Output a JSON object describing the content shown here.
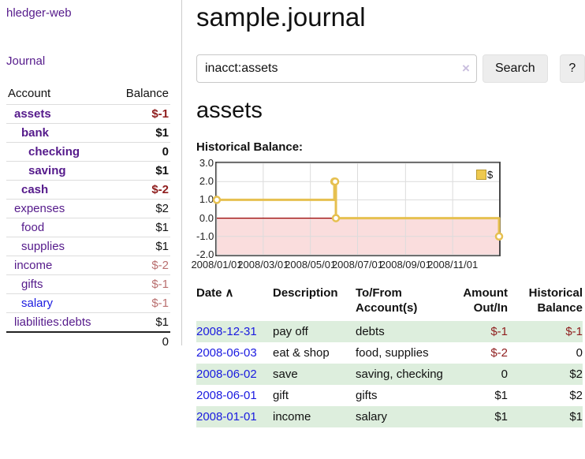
{
  "app": {
    "title": "hledger-web",
    "nav_journal": "Journal"
  },
  "sidebar": {
    "headers": {
      "account": "Account",
      "balance": "Balance"
    },
    "accounts": [
      {
        "name": "assets",
        "balance": "$-1",
        "indent": 0,
        "bold": true,
        "negative": true
      },
      {
        "name": "bank",
        "balance": "$1",
        "indent": 1,
        "bold": true,
        "negative": false
      },
      {
        "name": "checking",
        "balance": "0",
        "indent": 2,
        "bold": true,
        "negative": false
      },
      {
        "name": "saving",
        "balance": "$1",
        "indent": 2,
        "bold": true,
        "negative": false
      },
      {
        "name": "cash",
        "balance": "$-2",
        "indent": 1,
        "bold": true,
        "negative": true
      },
      {
        "name": "expenses",
        "balance": "$2",
        "indent": 0,
        "bold": false,
        "negative": false
      },
      {
        "name": "food",
        "balance": "$1",
        "indent": 1,
        "bold": false,
        "negative": false
      },
      {
        "name": "supplies",
        "balance": "$1",
        "indent": 1,
        "bold": false,
        "negative": false
      },
      {
        "name": "income",
        "balance": "$-2",
        "indent": 0,
        "bold": false,
        "negative": true
      },
      {
        "name": "gifts",
        "balance": "$-1",
        "indent": 1,
        "bold": false,
        "negative": true
      },
      {
        "name": "salary",
        "balance": "$-1",
        "indent": 1,
        "bold": false,
        "negative": true,
        "link_color": "blue"
      },
      {
        "name": "liabilities:debts",
        "balance": "$1",
        "indent": 0,
        "bold": false,
        "negative": false
      }
    ],
    "total": "0"
  },
  "main": {
    "title": "sample.journal",
    "search": {
      "value": "inacct:assets",
      "clear_icon": "×",
      "button_label": "Search",
      "help_label": "?"
    },
    "account_heading": "assets",
    "chart_label": "Historical Balance:"
  },
  "chart_data": {
    "type": "line",
    "subtype": "step-after",
    "title": "Historical Balance",
    "x_range": [
      "2008-01-01",
      "2008-12-31"
    ],
    "ylim": [
      -2,
      3
    ],
    "y_ticks": [
      {
        "label": "3.0",
        "value": 3
      },
      {
        "label": "2.0",
        "value": 2
      },
      {
        "label": "1.0",
        "value": 1
      },
      {
        "label": "0.0",
        "value": 0
      },
      {
        "label": "-1.0",
        "value": -1
      },
      {
        "label": "-2.0",
        "value": -2
      }
    ],
    "x_ticks": [
      {
        "label": "2008/01/01",
        "date": "2008-01-01"
      },
      {
        "label": "2008/03/01",
        "date": "2008-03-01"
      },
      {
        "label": "2008/05/01",
        "date": "2008-05-01"
      },
      {
        "label": "2008/07/01",
        "date": "2008-07-01"
      },
      {
        "label": "2008/09/01",
        "date": "2008-09-01"
      },
      {
        "label": "2008/11/01",
        "date": "2008-11-01"
      }
    ],
    "series": [
      {
        "name": "$",
        "color": "#e6c050",
        "points": [
          {
            "date": "2008-01-01",
            "value": 1
          },
          {
            "date": "2008-06-01",
            "value": 2
          },
          {
            "date": "2008-06-02",
            "value": 2
          },
          {
            "date": "2008-06-03",
            "value": 0
          },
          {
            "date": "2008-12-31",
            "value": -1
          }
        ]
      }
    ],
    "legend": {
      "label": "$",
      "position": "top-right"
    },
    "grid": true,
    "grid_color": "#dcdcdc",
    "negative_region_color": "#fadddd",
    "zero_line_color": "#990000",
    "border_color": "#4a4a4a"
  },
  "table": {
    "sort_icon": "∧",
    "headers": [
      "Date",
      "Description",
      "To/From\nAccount(s)",
      "Amount\nOut/In",
      "Historical\nBalance"
    ],
    "rows": [
      {
        "date": "2008-12-31",
        "description": "pay off",
        "accounts": "debts",
        "amount": "$-1",
        "balance": "$-1",
        "amount_negative": true,
        "balance_negative": true
      },
      {
        "date": "2008-06-03",
        "description": "eat & shop",
        "accounts": "food, supplies",
        "amount": "$-2",
        "balance": "0",
        "amount_negative": true,
        "balance_negative": false
      },
      {
        "date": "2008-06-02",
        "description": "save",
        "accounts": "saving, checking",
        "amount": "0",
        "balance": "$2",
        "amount_negative": false,
        "balance_negative": false
      },
      {
        "date": "2008-06-01",
        "description": "gift",
        "accounts": "gifts",
        "amount": "$1",
        "balance": "$2",
        "amount_negative": false,
        "balance_negative": false
      },
      {
        "date": "2008-01-01",
        "description": "income",
        "accounts": "salary",
        "amount": "$1",
        "balance": "$1",
        "amount_negative": false,
        "balance_negative": false
      }
    ]
  }
}
